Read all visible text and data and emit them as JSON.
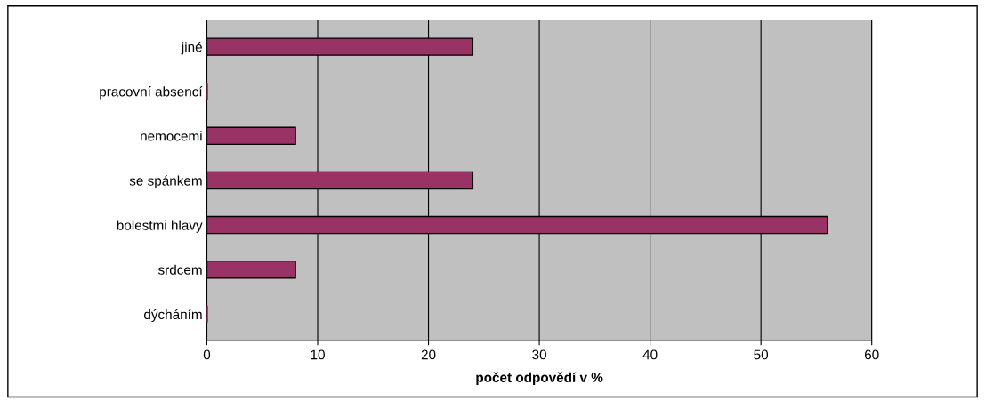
{
  "chart_data": {
    "type": "bar",
    "orientation": "horizontal",
    "xlabel": "počet odpovědí v %",
    "categories": [
      "jiné",
      "pracovní absencí",
      "nemocemi",
      "se spánkem",
      "bolestmi hlavy",
      "srdcem",
      "dýcháním"
    ],
    "values": [
      24,
      0,
      8,
      24,
      56,
      8,
      0
    ],
    "color": "#993366",
    "xlim": [
      0,
      60
    ],
    "xticks": [
      0,
      10,
      20,
      30,
      40,
      50,
      60
    ],
    "grid": "x",
    "legend": false
  }
}
